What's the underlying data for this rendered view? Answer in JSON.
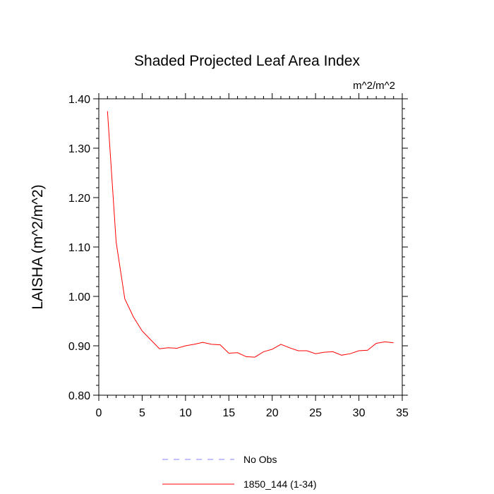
{
  "chart_data": {
    "type": "line",
    "title": "Shaded Projected Leaf Area Index",
    "units_label": "m^2/m^2",
    "ylabel": "LAISHA  (m^2/m^2)",
    "xlabel": "",
    "xlim": [
      0,
      35
    ],
    "ylim": [
      0.8,
      1.4
    ],
    "x_ticks": [
      0,
      5,
      10,
      15,
      20,
      25,
      30,
      35
    ],
    "y_ticks": [
      0.8,
      0.9,
      1.0,
      1.1,
      1.2,
      1.3,
      1.4
    ],
    "x_tick_labels": [
      "0",
      "5",
      "10",
      "15",
      "20",
      "25",
      "30",
      "35"
    ],
    "y_tick_labels": [
      "0.80",
      "0.90",
      "1.00",
      "1.10",
      "1.20",
      "1.30",
      "1.40"
    ],
    "grid": false,
    "legend_position": "bottom",
    "series": [
      {
        "name": "No Obs",
        "color": "#8080ff",
        "style": "dashed",
        "x": [],
        "values": []
      },
      {
        "name": "1850_144 (1-34)",
        "color": "#ff0000",
        "style": "solid",
        "x": [
          1,
          2,
          3,
          4,
          5,
          6,
          7,
          8,
          9,
          10,
          11,
          12,
          13,
          14,
          15,
          16,
          17,
          18,
          19,
          20,
          21,
          22,
          23,
          24,
          25,
          26,
          27,
          28,
          29,
          30,
          31,
          32,
          33,
          34
        ],
        "values": [
          1.375,
          1.11,
          0.995,
          0.958,
          0.93,
          0.912,
          0.894,
          0.896,
          0.895,
          0.9,
          0.903,
          0.907,
          0.903,
          0.902,
          0.885,
          0.886,
          0.878,
          0.877,
          0.888,
          0.893,
          0.903,
          0.896,
          0.89,
          0.89,
          0.884,
          0.887,
          0.888,
          0.881,
          0.884,
          0.89,
          0.891,
          0.905,
          0.908,
          0.906
        ]
      }
    ]
  }
}
